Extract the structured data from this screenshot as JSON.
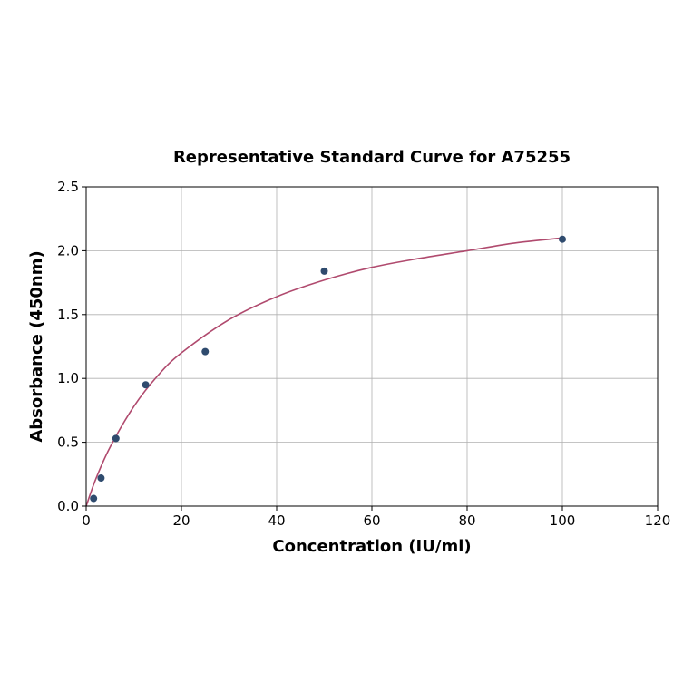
{
  "chart_data": {
    "type": "scatter",
    "title": "Representative Standard Curve for A75255",
    "xlabel": "Concentration (IU/ml)",
    "ylabel": "Absorbance (450nm)",
    "xlim": [
      0,
      120
    ],
    "ylim": [
      0,
      2.5
    ],
    "xticks": [
      "0",
      "20",
      "40",
      "60",
      "80",
      "100",
      "120"
    ],
    "yticks": [
      "0.0",
      "0.5",
      "1.0",
      "1.5",
      "2.0",
      "2.5"
    ],
    "grid": true,
    "points": {
      "x": [
        1.5625,
        3.125,
        6.25,
        12.5,
        25,
        50,
        100
      ],
      "y": [
        0.06,
        0.22,
        0.53,
        0.95,
        1.21,
        1.84,
        2.09
      ]
    },
    "fit_curve": {
      "x": [
        0,
        2,
        5,
        10,
        15,
        20,
        30,
        40,
        50,
        60,
        70,
        80,
        90,
        100
      ],
      "y": [
        0.0,
        0.21,
        0.46,
        0.78,
        1.02,
        1.2,
        1.46,
        1.64,
        1.77,
        1.87,
        1.94,
        2.0,
        2.06,
        2.1
      ]
    },
    "colors": {
      "points": "#2f4b6e",
      "curve": "#b04a6e",
      "grid": "#b0b0b0"
    }
  }
}
